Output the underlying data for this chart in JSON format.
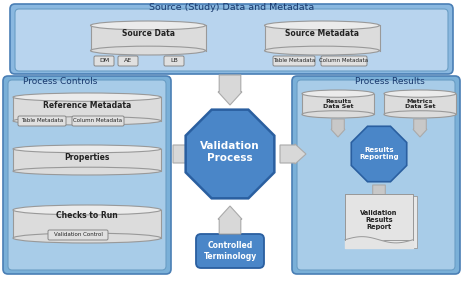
{
  "title": "Source (Study) Data and Metadata",
  "left_box_title": "Process Controls",
  "right_box_title": "Process Results",
  "center_octagon_label": "Validation\nProcess",
  "bottom_box_label": "Controlled\nTerminology",
  "source_data_label": "Source Data",
  "source_metadata_label": "Source Metadata",
  "source_data_sub": [
    "DM",
    "AE",
    "LB"
  ],
  "source_metadata_sub": [
    "Table Metadata",
    "Column Metadata"
  ],
  "ref_metadata_label": "Reference Metadata",
  "ref_metadata_sub": [
    "Table Metadata",
    "Column Metadata"
  ],
  "properties_label": "Properties",
  "checks_label": "Checks to Run",
  "checks_sub": [
    "Validation Control"
  ],
  "results_data_label": "Results\nData Set",
  "metrics_data_label": "Metrics\nData Set",
  "results_reporting_label": "Results\nReporting",
  "validation_results_label": "Validation\nResults\nReport",
  "bg_color": "#ffffff",
  "outer_box_color": "#7ab0d8",
  "outer_box_edge": "#4a7fb5",
  "inner_box_color": "#a8cce8",
  "inner_box_edge": "#6a9ec5",
  "top_box_bg": "#8ab8e0",
  "top_inner_bg": "#b8d4ee",
  "cylinder_body": "#dcdcdc",
  "cylinder_top": "#ebebeb",
  "cylinder_edge": "#999999",
  "small_box_color": "#e0e0e0",
  "small_box_edge": "#888888",
  "octagon_color": "#4a86c8",
  "octagon_edge": "#2a5fa0",
  "ctrl_term_color": "#4a86c8",
  "ctrl_term_edge": "#2a5fa0",
  "results_hex_color": "#4a86c8",
  "results_hex_edge": "#2a5fa0",
  "arrow_fill": "#d8d8d8",
  "arrow_edge": "#aaaaaa",
  "small_arrow_fill": "#c8c8c8",
  "small_arrow_edge": "#aaaaaa",
  "label_color": "#1a3a6e",
  "white": "#ffffff",
  "dark_text": "#222222"
}
